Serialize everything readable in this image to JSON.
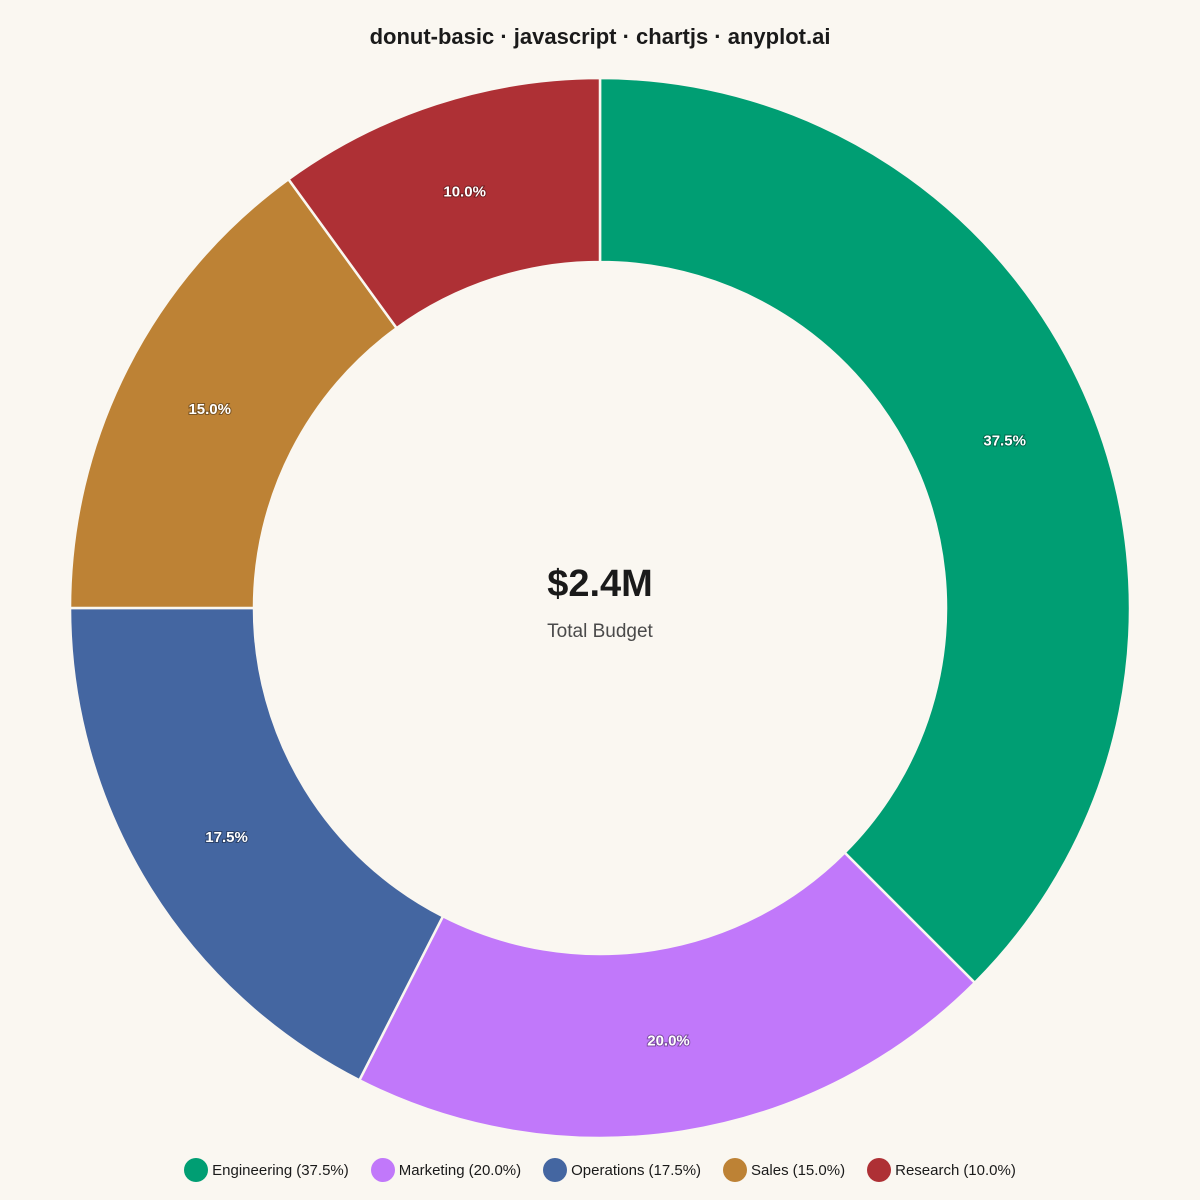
{
  "chart_data": {
    "type": "pie",
    "variant": "donut",
    "title": "donut-basic · javascript · chartjs · anyplot.ai",
    "center_value": "$2.4M",
    "center_label": "Total Budget",
    "categories": [
      "Engineering",
      "Marketing",
      "Operations",
      "Sales",
      "Research"
    ],
    "values": [
      37.5,
      20.0,
      17.5,
      15.0,
      10.0
    ],
    "data_labels": [
      "37.5%",
      "20.0%",
      "17.5%",
      "15.0%",
      "10.0%"
    ],
    "colors": [
      "#009E73",
      "#C178FA",
      "#4466A1",
      "#BD8235",
      "#AE3035"
    ],
    "legend": {
      "position": "bottom",
      "entries": [
        {
          "label": "Engineering",
          "pct": "(37.5%)"
        },
        {
          "label": "Marketing",
          "pct": "(20.0%)"
        },
        {
          "label": "Operations",
          "pct": "(17.5%)"
        },
        {
          "label": "Sales",
          "pct": "(15.0%)"
        },
        {
          "label": "Research",
          "pct": "(10.0%)"
        }
      ]
    }
  }
}
